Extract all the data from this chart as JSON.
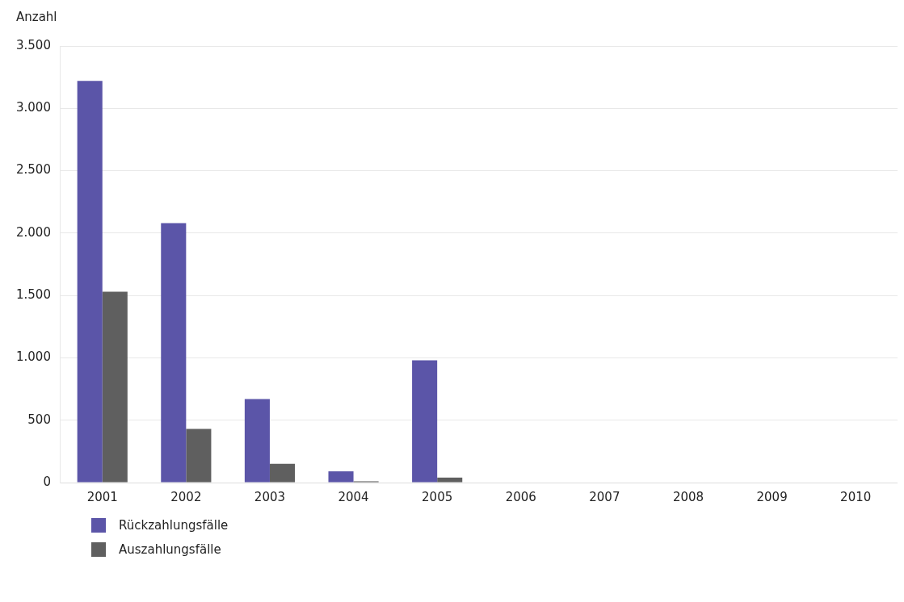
{
  "chart_data": {
    "type": "bar",
    "ylabel": "Anzahl",
    "categories": [
      "2001",
      "2002",
      "2003",
      "2004",
      "2005",
      "2006",
      "2007",
      "2008",
      "2009",
      "2010"
    ],
    "series": [
      {
        "name": "Rückzahlungsfälle",
        "color": "#5b55a8",
        "values": [
          3220,
          2080,
          670,
          90,
          980,
          null,
          null,
          null,
          null,
          null
        ]
      },
      {
        "name": "Auszahlungsfälle",
        "color": "#5f5f5f",
        "values": [
          1530,
          430,
          150,
          10,
          40,
          null,
          null,
          null,
          null,
          null
        ]
      }
    ],
    "ylim": [
      0,
      3500
    ],
    "yticks": [
      0,
      500,
      {
        "value": 1000,
        "label": "1.000"
      },
      {
        "value": 1500,
        "label": "1.500"
      },
      {
        "value": 2000,
        "label": "2.000"
      },
      {
        "value": 2500,
        "label": "2.500"
      },
      {
        "value": 3000,
        "label": "3.000"
      },
      {
        "value": 3500,
        "label": "3.500"
      }
    ],
    "grid": "y",
    "legend": "bottom left"
  }
}
